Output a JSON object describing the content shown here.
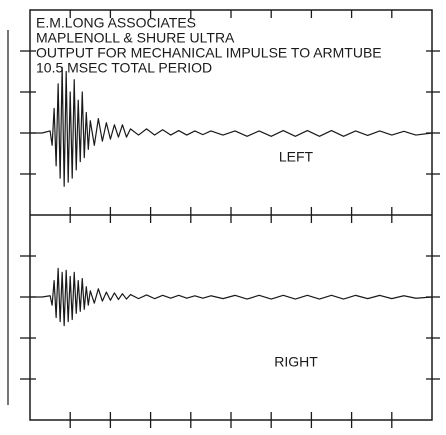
{
  "chart_data": [
    {
      "type": "line",
      "annotations": [
        "E.M.LONG ASSOCIATES",
        "MAPLENOLL & SHURE ULTRA",
        "OUTPUT FOR MECHANICAL IMPULSE TO ARMTUBE",
        "10.5 MSEC TOTAL PERIOD"
      ],
      "x": [
        0,
        0.3,
        0.5,
        0.55,
        0.6,
        0.65,
        0.7,
        0.75,
        0.8,
        0.85,
        0.9,
        0.95,
        1.0,
        1.05,
        1.1,
        1.15,
        1.2,
        1.25,
        1.3,
        1.35,
        1.4,
        1.45,
        1.5,
        1.6,
        1.7,
        1.8,
        1.9,
        2.0,
        2.1,
        2.2,
        2.3,
        2.4,
        2.5,
        2.7,
        2.9,
        3.1,
        3.3,
        3.5,
        3.7,
        3.9,
        4.1,
        4.3,
        4.5,
        4.8,
        5.1,
        5.4,
        5.7,
        6.0,
        6.3,
        6.6,
        6.9,
        7.2,
        7.5,
        7.8,
        8.1,
        8.4,
        8.7,
        9.0,
        9.3,
        9.6,
        10
      ],
      "series": [
        {
          "name": "LEFT",
          "color": "#1a1a1a",
          "values": [
            0,
            0,
            0.05,
            -0.3,
            0.6,
            -0.8,
            1.2,
            -1.1,
            1.6,
            -1.3,
            1.5,
            -1.2,
            1.0,
            -1.1,
            1.3,
            -0.9,
            0.8,
            -0.7,
            1.0,
            -0.6,
            0.5,
            -0.4,
            0.3,
            -0.3,
            0.35,
            -0.2,
            0.25,
            -0.15,
            0.2,
            -0.1,
            0.2,
            -0.1,
            0.1,
            -0.05,
            0.1,
            -0.05,
            0.08,
            -0.05,
            0.06,
            -0.05,
            0.05,
            -0.04,
            0.05,
            -0.05,
            0.05,
            -0.08,
            0.05,
            -0.08,
            0.06,
            -0.08,
            0.06,
            -0.08,
            0.06,
            -0.08,
            0.05,
            -0.06,
            0.05,
            -0.05,
            0.04,
            -0.05,
            0
          ]
        }
      ],
      "xlim": [
        0,
        10
      ],
      "xticks": [
        1,
        2,
        3,
        4,
        5,
        6,
        7,
        8,
        9
      ],
      "ylim": [
        -2,
        3
      ],
      "yticks": [
        -1,
        0,
        1,
        2
      ]
    },
    {
      "type": "line",
      "x": [
        0,
        0.3,
        0.5,
        0.55,
        0.6,
        0.65,
        0.7,
        0.75,
        0.8,
        0.85,
        0.9,
        0.95,
        1.0,
        1.05,
        1.1,
        1.15,
        1.2,
        1.25,
        1.3,
        1.35,
        1.4,
        1.45,
        1.5,
        1.6,
        1.7,
        1.8,
        1.9,
        2.0,
        2.1,
        2.2,
        2.3,
        2.4,
        2.5,
        2.7,
        2.9,
        3.1,
        3.3,
        3.5,
        3.7,
        3.9,
        4.1,
        4.3,
        4.5,
        4.8,
        5.1,
        5.4,
        5.7,
        6.0,
        6.3,
        6.6,
        6.9,
        7.2,
        7.5,
        7.8,
        8.1,
        8.4,
        8.7,
        9.0,
        9.3,
        9.6,
        10
      ],
      "series": [
        {
          "name": "RIGHT",
          "color": "#1a1a1a",
          "values": [
            0,
            0,
            0.03,
            -0.2,
            0.4,
            -0.5,
            0.7,
            -0.6,
            0.6,
            -0.7,
            0.65,
            -0.6,
            0.5,
            -0.55,
            0.6,
            -0.4,
            0.4,
            -0.35,
            0.45,
            -0.3,
            0.25,
            -0.2,
            0.15,
            -0.15,
            0.2,
            -0.1,
            0.12,
            -0.08,
            0.1,
            -0.06,
            0.08,
            -0.05,
            0.06,
            -0.04,
            0.05,
            -0.04,
            0.04,
            -0.03,
            0.04,
            -0.03,
            0.03,
            -0.03,
            0.03,
            -0.04,
            0.04,
            -0.05,
            0.04,
            -0.05,
            0.04,
            -0.05,
            0.04,
            -0.05,
            0.04,
            -0.05,
            0.04,
            -0.04,
            0.04,
            -0.04,
            0.03,
            -0.03,
            0
          ]
        }
      ],
      "xlim": [
        0,
        10
      ],
      "xticks": [
        1,
        2,
        3,
        4,
        5,
        6,
        7,
        8,
        9
      ],
      "ylim": [
        -3,
        2
      ],
      "yticks": [
        -2,
        -1,
        0,
        1
      ]
    }
  ]
}
